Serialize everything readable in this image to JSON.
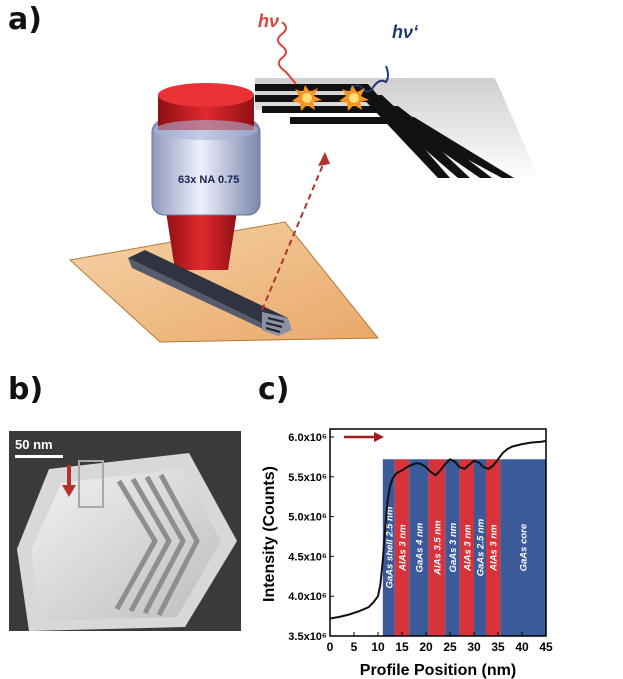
{
  "panels": {
    "a": "a)",
    "b": "b)",
    "c": "c)"
  },
  "schematic": {
    "objective_label": "63x NA 0.75",
    "photon_in": "hν",
    "photon_out": "hν‘"
  },
  "micrograph": {
    "scale_bar": "50 nm"
  },
  "chart_data": {
    "type": "line",
    "xlabel": "Profile Position (nm)",
    "ylabel": "Intensity (Counts)",
    "xlim": [
      0,
      45
    ],
    "ylim": [
      3500000,
      6100000
    ],
    "x_ticks": [
      "0",
      "5",
      "10",
      "15",
      "20",
      "25",
      "30",
      "35",
      "40",
      "45"
    ],
    "y_ticks": [
      {
        "v": 3500000,
        "label": "3.5x10⁶"
      },
      {
        "v": 4000000,
        "label": "4.0x10⁶"
      },
      {
        "v": 4500000,
        "label": "4.5x10⁶"
      },
      {
        "v": 5000000,
        "label": "5.0x10⁶"
      },
      {
        "v": 5500000,
        "label": "5.5x10⁶"
      },
      {
        "v": 6000000,
        "label": "6.0x10⁶"
      }
    ],
    "layers": [
      {
        "label": "GaAs shell 2.5 nm",
        "x0": 11.0,
        "x1": 13.5,
        "material": "GaAs",
        "color": "#3a5a9a"
      },
      {
        "label": "AlAs 3 nm",
        "x0": 13.5,
        "x1": 16.5,
        "material": "AlAs",
        "color": "#d8333a"
      },
      {
        "label": "GaAs 4 nm",
        "x0": 16.5,
        "x1": 20.5,
        "material": "GaAs",
        "color": "#3a5a9a"
      },
      {
        "label": "AlAs 3.5 nm",
        "x0": 20.5,
        "x1": 24.0,
        "material": "AlAs",
        "color": "#d8333a"
      },
      {
        "label": "GaAs 3 nm",
        "x0": 24.0,
        "x1": 27.0,
        "material": "GaAs",
        "color": "#3a5a9a"
      },
      {
        "label": "AlAs 3 nm",
        "x0": 27.0,
        "x1": 30.0,
        "material": "AlAs",
        "color": "#d8333a"
      },
      {
        "label": "GaAs 2.5 nm",
        "x0": 30.0,
        "x1": 32.5,
        "material": "GaAs",
        "color": "#3a5a9a"
      },
      {
        "label": "AlAs 3 nm",
        "x0": 32.5,
        "x1": 35.5,
        "material": "AlAs",
        "color": "#d8333a"
      },
      {
        "label": "GaAs core",
        "x0": 35.5,
        "x1": 45.0,
        "material": "GaAs",
        "color": "#3a5a9a"
      }
    ],
    "layer_top": 5720000,
    "series": [
      {
        "x": [
          0,
          2,
          4,
          6,
          8,
          9,
          10,
          10.5,
          11,
          11.5,
          12,
          12.5,
          13,
          13.5,
          14,
          15,
          16,
          17,
          18,
          19,
          20,
          21,
          22,
          23,
          24,
          25,
          26,
          27,
          28,
          29,
          30,
          31,
          32,
          33,
          34,
          35,
          36,
          37,
          38,
          40,
          42,
          44,
          45
        ],
        "y": [
          3720000,
          3740000,
          3770000,
          3810000,
          3860000,
          3920000,
          4000000,
          4150000,
          4450000,
          4850000,
          5200000,
          5380000,
          5470000,
          5520000,
          5550000,
          5580000,
          5620000,
          5650000,
          5670000,
          5660000,
          5620000,
          5560000,
          5520000,
          5580000,
          5660000,
          5720000,
          5690000,
          5620000,
          5600000,
          5650000,
          5700000,
          5680000,
          5620000,
          5600000,
          5640000,
          5720000,
          5800000,
          5850000,
          5880000,
          5910000,
          5930000,
          5940000,
          5950000
        ]
      }
    ]
  }
}
